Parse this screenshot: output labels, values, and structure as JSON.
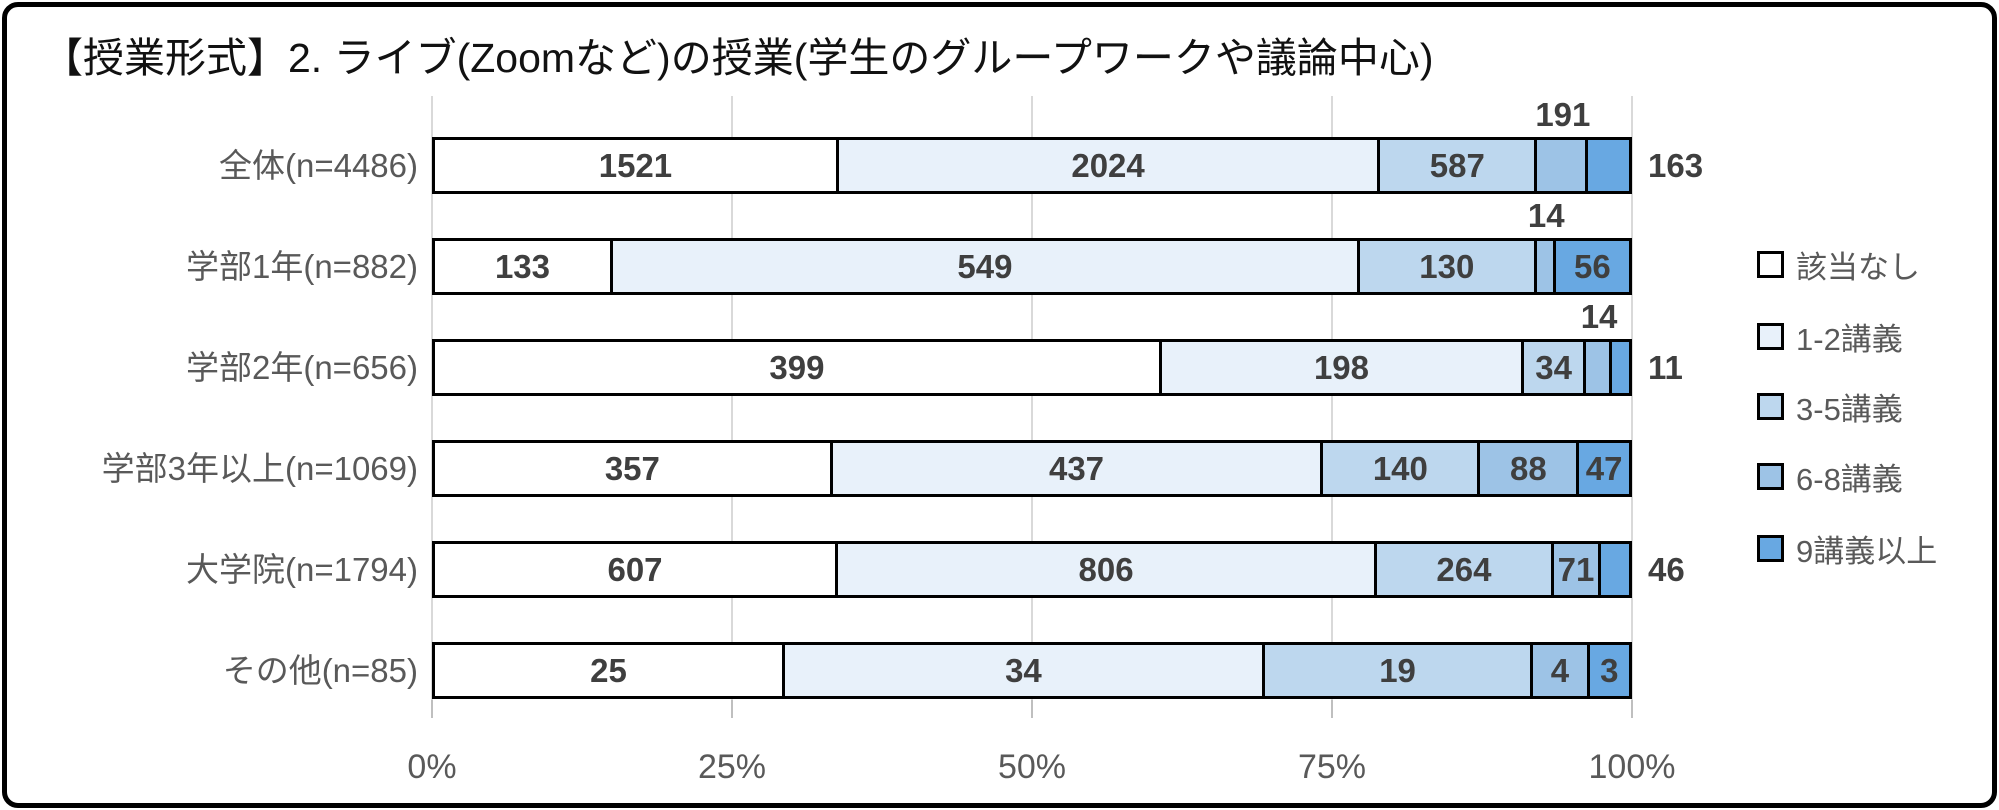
{
  "chart_data": {
    "type": "bar",
    "variant": "100-percent-stacked-horizontal",
    "title": "【授業形式】2. ライブ(Zoomなど)の授業(学生のグループワークや議論中心)",
    "categories": [
      "全体(n=4486)",
      "学部1年(n=882)",
      "学部2年(n=656)",
      "学部3年以上(n=1069)",
      "大学院(n=1794)",
      "その他(n=85)"
    ],
    "series": [
      {
        "name": "該当なし",
        "color": "#FFFFFF",
        "values": [
          1521,
          133,
          399,
          357,
          607,
          25
        ]
      },
      {
        "name": "1-2講義",
        "color": "#E8F1FA",
        "values": [
          2024,
          549,
          198,
          437,
          806,
          34
        ]
      },
      {
        "name": "3-5講義",
        "color": "#BDD7EE",
        "values": [
          587,
          130,
          34,
          140,
          264,
          19
        ]
      },
      {
        "name": "6-8講義",
        "color": "#9DC3E6",
        "values": [
          191,
          14,
          14,
          88,
          71,
          4
        ]
      },
      {
        "name": "9講義以上",
        "color": "#68A8E2",
        "values": [
          163,
          56,
          11,
          47,
          46,
          3
        ]
      }
    ],
    "label_placements": [
      [
        "inside",
        "inside",
        "inside",
        "above",
        "outside"
      ],
      [
        "inside",
        "inside",
        "inside",
        "above",
        "inside"
      ],
      [
        "inside",
        "inside",
        "inside",
        "above",
        "outside"
      ],
      [
        "inside",
        "inside",
        "inside",
        "inside",
        "inside"
      ],
      [
        "inside",
        "inside",
        "inside",
        "inside",
        "outside"
      ],
      [
        "inside",
        "inside",
        "inside",
        "inside",
        "inside"
      ]
    ],
    "x_ticks": [
      "0%",
      "25%",
      "50%",
      "75%",
      "100%"
    ],
    "xlim": [
      0,
      100
    ],
    "grid": true,
    "legend_position": "right",
    "value_labels": true
  },
  "colors": {
    "gridline": "#D9D9D9",
    "tick": "#BFBFBF",
    "axis_text": "#595959",
    "category_text": "#595959",
    "value_text": "#3F3F3F",
    "legend_text": "#595959",
    "bar_border": "#000000",
    "frame_border": "#000000",
    "background": "#FFFFFF"
  }
}
